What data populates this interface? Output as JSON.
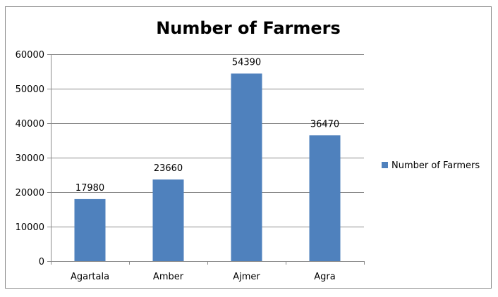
{
  "chart_data": {
    "type": "bar",
    "title": "Number of Farmers",
    "categories": [
      "Agartala",
      "Amber",
      "Ajmer",
      "Agra"
    ],
    "series": [
      {
        "name": "Number of Farmers",
        "values": [
          17980,
          23660,
          54390,
          36470
        ],
        "color": "#4f81bd"
      }
    ],
    "ylim": [
      0,
      60000
    ],
    "yticks": [
      "0",
      "10000",
      "20000",
      "30000",
      "40000",
      "50000",
      "60000"
    ],
    "grid": true,
    "legend_position": "right",
    "data_labels": [
      "17980",
      "23660",
      "54390",
      "36470"
    ]
  }
}
